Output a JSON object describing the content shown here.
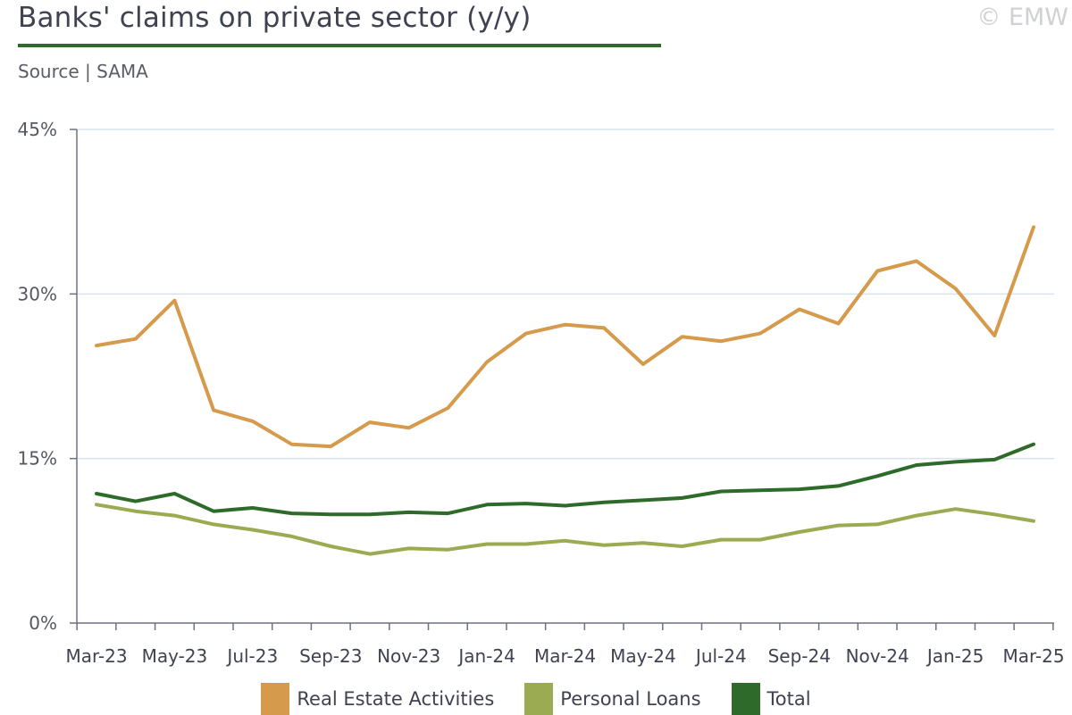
{
  "header": {
    "title": "Banks' claims on private sector (y/y)",
    "source": "Source | SAMA",
    "copyright": "© EMW"
  },
  "colors": {
    "title_rule": "#2e6b2b",
    "axis": "#6d7080",
    "grid": "#d6e3ef"
  },
  "chart_data": {
    "type": "line",
    "title": "Banks' claims on private sector (y/y)",
    "xlabel": "",
    "ylabel": "",
    "ylim": [
      0,
      45
    ],
    "yticks": [
      0,
      15,
      30,
      45
    ],
    "ytick_labels": [
      "0%",
      "15%",
      "30%",
      "45%"
    ],
    "grid": "horizontal",
    "legend_position": "bottom-center",
    "x": [
      "Mar-23",
      "Apr-23",
      "May-23",
      "Jun-23",
      "Jul-23",
      "Aug-23",
      "Sep-23",
      "Oct-23",
      "Nov-23",
      "Dec-23",
      "Jan-24",
      "Feb-24",
      "Mar-24",
      "Apr-24",
      "May-24",
      "Jun-24",
      "Jul-24",
      "Aug-24",
      "Sep-24",
      "Oct-24",
      "Nov-24",
      "Dec-24",
      "Jan-25",
      "Feb-25",
      "Mar-25"
    ],
    "x_tick_labels": [
      "Mar-23",
      "May-23",
      "Jul-23",
      "Sep-23",
      "Nov-23",
      "Jan-24",
      "Mar-24",
      "May-24",
      "Jul-24",
      "Sep-24",
      "Nov-24",
      "Jan-25",
      "Mar-25"
    ],
    "series": [
      {
        "name": "Real Estate Activities",
        "color": "#d69a4c",
        "values": [
          25.3,
          25.9,
          29.4,
          19.4,
          18.4,
          16.3,
          16.1,
          18.3,
          17.8,
          19.6,
          23.8,
          26.4,
          27.2,
          26.9,
          23.6,
          26.1,
          25.7,
          26.4,
          28.6,
          27.3,
          32.1,
          33.0,
          30.5,
          26.2,
          36.1
        ]
      },
      {
        "name": "Personal Loans",
        "color": "#9aab52",
        "values": [
          10.8,
          10.2,
          9.8,
          9.0,
          8.5,
          7.9,
          7.0,
          6.3,
          6.8,
          6.7,
          7.2,
          7.2,
          7.5,
          7.1,
          7.3,
          7.0,
          7.6,
          7.6,
          8.3,
          8.9,
          9.0,
          9.8,
          10.4,
          9.9,
          9.3
        ]
      },
      {
        "name": "Total",
        "color": "#2e6b2b",
        "values": [
          11.8,
          11.1,
          11.8,
          10.2,
          10.5,
          10.0,
          9.9,
          9.9,
          10.1,
          10.0,
          10.8,
          10.9,
          10.7,
          11.0,
          11.2,
          11.4,
          12.0,
          12.1,
          12.2,
          12.5,
          13.4,
          14.4,
          14.7,
          14.9,
          16.3
        ]
      }
    ]
  }
}
